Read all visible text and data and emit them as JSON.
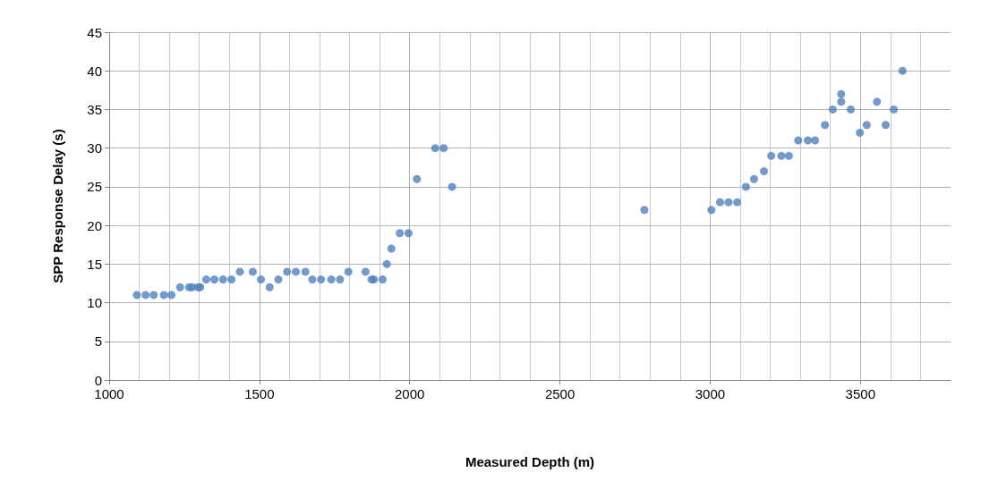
{
  "chart_data": {
    "type": "scatter",
    "xlabel": "Measured Depth (m)",
    "ylabel": "SPP Response Delay (s)",
    "xlim": [
      1000,
      3800
    ],
    "xticks": [
      1000,
      1500,
      2000,
      2500,
      3000,
      3500
    ],
    "ylim": [
      0,
      45
    ],
    "yticks": [
      0,
      5,
      10,
      15,
      20,
      25,
      30,
      35,
      40,
      45
    ],
    "grid": true,
    "marker": "circle",
    "series": [
      {
        "color": "#4f81bd",
        "x": [
          1092,
          1121,
          1148,
          1182,
          1207,
          1236,
          1266,
          1276,
          1296,
          1303,
          1323,
          1350,
          1379,
          1407,
          1435,
          1478,
          1505,
          1534,
          1563,
          1592,
          1621,
          1653,
          1676,
          1705,
          1739,
          1768,
          1796,
          1853,
          1873,
          1881,
          1910,
          1924,
          1939,
          1967,
          1996,
          2024,
          2085,
          2113,
          2141,
          2781,
          3004,
          3033,
          3061,
          3090,
          3119,
          3146,
          3179,
          3203,
          3237,
          3262,
          3293,
          3325,
          3349,
          3382,
          3408,
          3436,
          3436,
          3468,
          3498,
          3521,
          3555,
          3584,
          3611,
          3640
        ],
        "values": [
          11,
          11,
          11,
          11,
          11,
          12,
          12,
          12,
          12,
          12,
          13,
          13,
          13,
          13,
          14,
          14,
          13,
          12,
          13,
          14,
          14,
          14,
          13,
          13,
          13,
          13,
          14,
          14,
          13,
          13,
          13,
          15,
          17,
          19,
          19,
          26,
          30,
          30,
          25,
          22,
          22,
          23,
          23,
          23,
          25,
          26,
          27,
          29,
          29,
          29,
          31,
          31,
          31,
          33,
          35,
          37,
          36,
          35,
          32,
          33,
          36,
          33,
          35,
          40
        ]
      }
    ]
  }
}
